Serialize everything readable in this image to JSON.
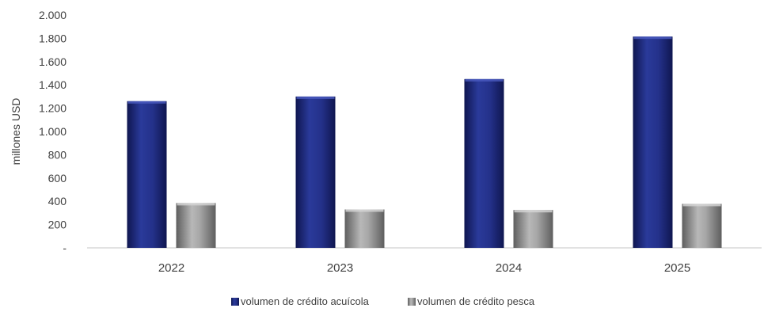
{
  "chart_data": {
    "type": "bar",
    "categories": [
      "2022",
      "2023",
      "2024",
      "2025"
    ],
    "series": [
      {
        "name": "volumen de crédito acuícola",
        "values": [
          1260,
          1300,
          1450,
          1815
        ],
        "color": "#1f2a78"
      },
      {
        "name": "volumen de crédito pesca",
        "values": [
          385,
          330,
          325,
          378
        ],
        "color": "#8f8f8f"
      }
    ],
    "ylabel": "millones USD",
    "xlabel": "",
    "ylim": [
      0,
      2000
    ],
    "yticks": [
      0,
      200,
      400,
      600,
      800,
      1000,
      1200,
      1400,
      1600,
      1800,
      2000
    ],
    "ytick_labels": [
      "-",
      "200",
      "400",
      "600",
      "800",
      "1.000",
      "1.200",
      "1.400",
      "1.600",
      "1.800",
      "2.000"
    ],
    "grid": false,
    "legend_position": "bottom"
  }
}
